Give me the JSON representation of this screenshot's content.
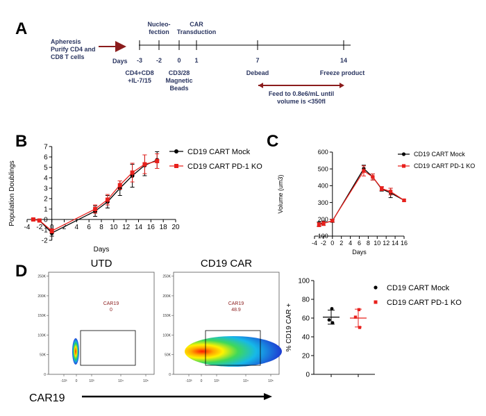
{
  "panels": {
    "a": "A",
    "b": "B",
    "c": "C",
    "d": "D"
  },
  "colors": {
    "mock": "#000000",
    "ko": "#e8201c",
    "navy": "#2a3560",
    "maroon": "#8b1c1c"
  },
  "timeline": {
    "start_text": "Apheresis\nPurify CD4 and\nCD8 T cells",
    "days_label": "Days",
    "ticks": [
      "-3",
      "-2",
      "0",
      "1",
      "7",
      "14"
    ],
    "tick_days": [
      -3,
      -2,
      0,
      1,
      7,
      14
    ],
    "top_labels": [
      {
        "day": -2,
        "text": "Nucleo-\nfection"
      },
      {
        "day": 1,
        "text": "CAR\nTransduction"
      }
    ],
    "bottom_labels": [
      {
        "day": -3,
        "text": "CD4+CD8\n+IL-7/15"
      },
      {
        "day": 0,
        "text": "CD3/28\nMagnetic\nBeads"
      },
      {
        "day": 7,
        "text": "Debead"
      },
      {
        "day": 14,
        "text": "Freeze product"
      }
    ],
    "feed_text": "Feed to 0.8e6/mL until\nvolume is <350fl"
  },
  "chart_data": [
    {
      "panel": "B",
      "type": "line",
      "xlabel": "Days",
      "ylabel": "Population Doublings",
      "xlim": [
        -4,
        20
      ],
      "ylim": [
        -2,
        7
      ],
      "xticks": [
        -4,
        -2,
        0,
        2,
        4,
        6,
        8,
        10,
        12,
        14,
        16,
        18,
        20
      ],
      "yticks": [
        -2,
        -1,
        0,
        1,
        2,
        3,
        4,
        5,
        6,
        7
      ],
      "legend_position": "top-right",
      "series": [
        {
          "name": "CD19 CART Mock",
          "marker": "circle",
          "x": [
            -3,
            -2,
            0,
            7,
            9,
            11,
            13,
            15,
            17
          ],
          "y": [
            0,
            -0.1,
            -1.3,
            0.8,
            1.7,
            3.0,
            4.2,
            5.2,
            5.7
          ],
          "err": [
            0.1,
            0.1,
            0.3,
            0.5,
            0.6,
            0.7,
            1.1,
            1.0,
            0.8
          ]
        },
        {
          "name": "CD19 CART PD-1 KO",
          "marker": "square",
          "x": [
            -3,
            -2,
            0,
            7,
            9,
            11,
            13,
            15,
            17
          ],
          "y": [
            0,
            -0.1,
            -1.1,
            1.0,
            1.9,
            3.3,
            4.5,
            5.3,
            5.6
          ],
          "err": [
            0.1,
            0.1,
            0.2,
            0.4,
            0.5,
            0.4,
            0.9,
            0.9,
            0.7
          ]
        }
      ]
    },
    {
      "panel": "C",
      "type": "line",
      "xlabel": "Days",
      "ylabel": "Volume (um3)",
      "xlim": [
        -4,
        16
      ],
      "ylim": [
        100,
        600
      ],
      "xticks": [
        -4,
        -2,
        0,
        2,
        4,
        6,
        8,
        10,
        12,
        14,
        16
      ],
      "yticks": [
        100,
        200,
        300,
        400,
        500,
        600
      ],
      "legend_position": "top-right",
      "series": [
        {
          "name": "CD19 CART Mock",
          "marker": "circle",
          "x": [
            -3,
            -2,
            0,
            7,
            9,
            11,
            13,
            16
          ],
          "y": [
            172,
            178,
            190,
            502,
            452,
            380,
            357,
            313
          ],
          "err": [
            12,
            12,
            8,
            20,
            18,
            12,
            28,
            6
          ]
        },
        {
          "name": "CD19 CART PD-1 KO",
          "marker": "square",
          "x": [
            -3,
            -2,
            0,
            7,
            9,
            11,
            13,
            16
          ],
          "y": [
            168,
            175,
            192,
            488,
            452,
            383,
            365,
            313
          ],
          "err": [
            12,
            12,
            8,
            30,
            18,
            12,
            20,
            6
          ]
        }
      ]
    },
    {
      "panel": "D",
      "type": "scatter",
      "ylabel": "% CD19 CAR +",
      "ylim": [
        0,
        100
      ],
      "yticks": [
        0,
        20,
        40,
        60,
        80,
        100
      ],
      "legend_position": "top-right",
      "series": [
        {
          "name": "CD19 CART Mock",
          "marker": "circle",
          "points": [
            70,
            58,
            55
          ],
          "mean": 61,
          "sd": 7.5
        },
        {
          "name": "CD19 CART PD-1 KO",
          "marker": "square",
          "points": [
            69,
            61,
            50
          ],
          "mean": 60,
          "sd": 9.5
        }
      ]
    }
  ],
  "flow": {
    "x_axis_label": "CAR19",
    "plots": [
      {
        "title": "UTD",
        "gate_label": "CAR19",
        "gate_value": "0"
      },
      {
        "title": "CD19 CAR",
        "gate_label": "CAR19",
        "gate_value": "48.9"
      }
    ],
    "y_ticks": [
      "250K",
      "200K",
      "150K",
      "100K",
      "50K",
      "0"
    ],
    "y_tick_values": [
      250,
      200,
      150,
      100,
      50,
      0
    ],
    "x_ticks": [
      "-10³",
      "0",
      "10³",
      "10⁴",
      "10⁵"
    ]
  }
}
